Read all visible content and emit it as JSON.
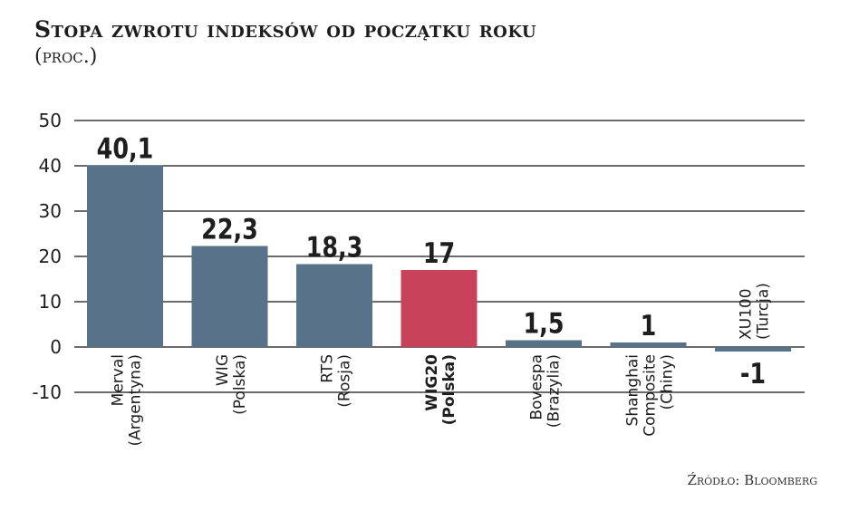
{
  "title": "Stopa zwrotu indeksów od początku roku",
  "subtitle": "(proc.)",
  "source": "Źródło: Bloomberg",
  "colors": {
    "bar": "#587389",
    "highlight": "#c8435a",
    "grid": "#3a3a3a",
    "text": "#1e1e1e"
  },
  "chart_data": {
    "type": "bar",
    "ylim": [
      -10,
      50
    ],
    "yticks": [
      50,
      40,
      30,
      20,
      10,
      0,
      -10
    ],
    "grid": true,
    "categories": [
      {
        "line1": "Merval",
        "line2": "(Argentyna)",
        "value": 40.1,
        "label": "40,1",
        "highlight": false
      },
      {
        "line1": "WIG",
        "line2": "(Polska)",
        "value": 22.3,
        "label": "22,3",
        "highlight": false
      },
      {
        "line1": "RTS",
        "line2": "(Rosja)",
        "value": 18.3,
        "label": "18,3",
        "highlight": false
      },
      {
        "line1": "WIG20",
        "line2": "(Polska)",
        "value": 17,
        "label": "17",
        "highlight": true
      },
      {
        "line1": "Bovespa",
        "line2": "(Brazylia)",
        "value": 1.5,
        "label": "1,5",
        "highlight": false
      },
      {
        "line1": "Shanghai",
        "line2": "Composite",
        "line3": "(Chiny)",
        "value": 1,
        "label": "1",
        "highlight": false
      },
      {
        "line1": "XU100",
        "line2": "(Turcja)",
        "value": -1,
        "label": "-1",
        "highlight": false
      }
    ]
  }
}
